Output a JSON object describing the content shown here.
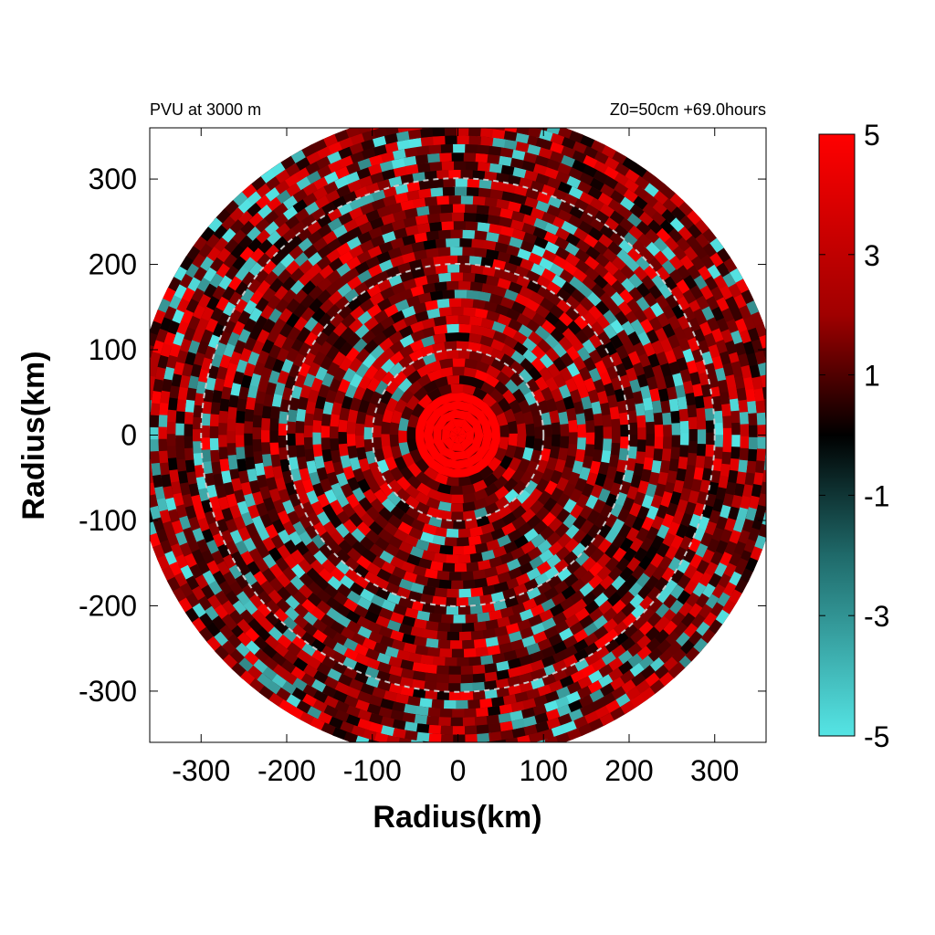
{
  "chart_data": {
    "type": "heatmap",
    "title_left": "PVU at  3000 m",
    "title_right": "Z0=50cm  +69.0hours",
    "xlabel": "Radius(km)",
    "ylabel": "Radius(km)",
    "xlim": [
      -360,
      360
    ],
    "ylim": [
      -360,
      360
    ],
    "xticks": [
      -300,
      -200,
      -100,
      0,
      100,
      200,
      300
    ],
    "yticks": [
      -300,
      -200,
      -100,
      0,
      100,
      200,
      300
    ],
    "domain_radius_km": 380,
    "reference_circles_km": [
      100,
      200,
      300
    ],
    "colorbar": {
      "range": [
        -5,
        5
      ],
      "ticks": [
        5,
        3,
        1,
        -1,
        -3,
        -5
      ],
      "colors": {
        "neg_max": "#55e5e5",
        "zero": "#000000",
        "pos_max": "#ff0000"
      }
    },
    "field_description_values": {
      "core_radius_km": 45,
      "core_value": 5,
      "background_value": 1.5
    }
  }
}
